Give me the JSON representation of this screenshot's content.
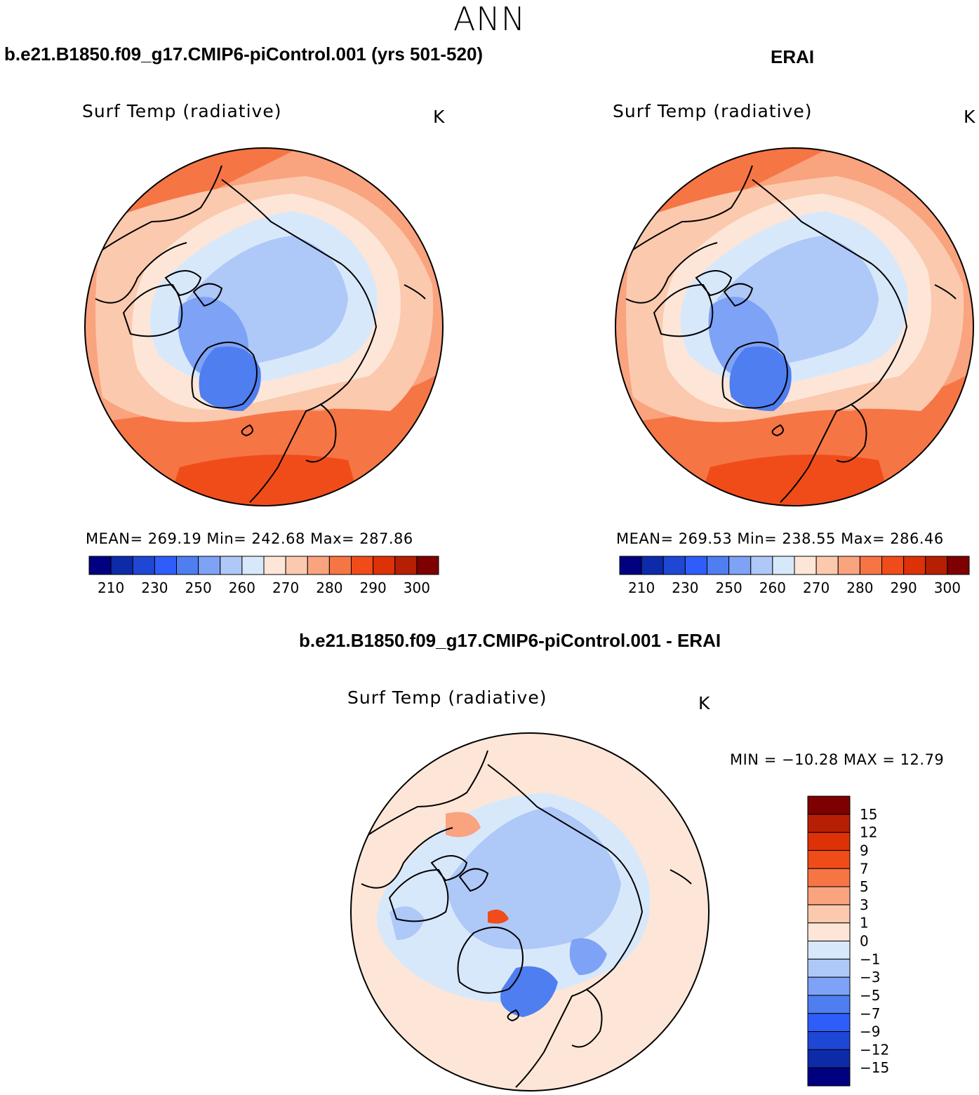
{
  "title": "ANN",
  "panels": [
    {
      "case": "b.e21.B1850.f09_g17.CMIP6-piControl.001 (yrs 501-520)",
      "variable": "Surf Temp (radiative)",
      "units": "K",
      "stats": "MEAN= 269.19   Min= 242.68   Max= 287.86"
    },
    {
      "case": "ERAI",
      "variable": "Surf Temp (radiative)",
      "units": "K",
      "stats": "MEAN= 269.53   Min= 238.55   Max= 286.46"
    },
    {
      "case": "b.e21.B1850.f09_g17.CMIP6-piControl.001 - ERAI",
      "variable": "Surf Temp (radiative)",
      "units": "K",
      "stats": "MIN = −10.28 MAX =   12.79"
    }
  ],
  "abs_colorbar": {
    "colors": [
      "#000080",
      "#0d2ba8",
      "#1f47d6",
      "#2f5dfa",
      "#4e7ef0",
      "#7ea2f5",
      "#aec8f8",
      "#d8e8fb",
      "#fde6d7",
      "#fbc9ae",
      "#f9a37f",
      "#f67545",
      "#f04c1a",
      "#dd3108",
      "#b61f03",
      "#7e0000"
    ],
    "labels": [
      "210",
      "230",
      "250",
      "260",
      "270",
      "280",
      "290",
      "300"
    ]
  },
  "diff_colorbar": {
    "colors": [
      "#000080",
      "#0d2ba8",
      "#1f47d6",
      "#2f5dfa",
      "#4e7ef0",
      "#7ea2f5",
      "#aec8f8",
      "#d8e8fb",
      "#fde6d7",
      "#fbc9ae",
      "#f9a37f",
      "#f67545",
      "#f04c1a",
      "#dd3108",
      "#b61f03",
      "#7e0000"
    ],
    "labels": [
      "15",
      "12",
      "9",
      "7",
      "5",
      "3",
      "1",
      "0",
      "−1",
      "−3",
      "−5",
      "−7",
      "−9",
      "−12",
      "−15"
    ]
  }
}
